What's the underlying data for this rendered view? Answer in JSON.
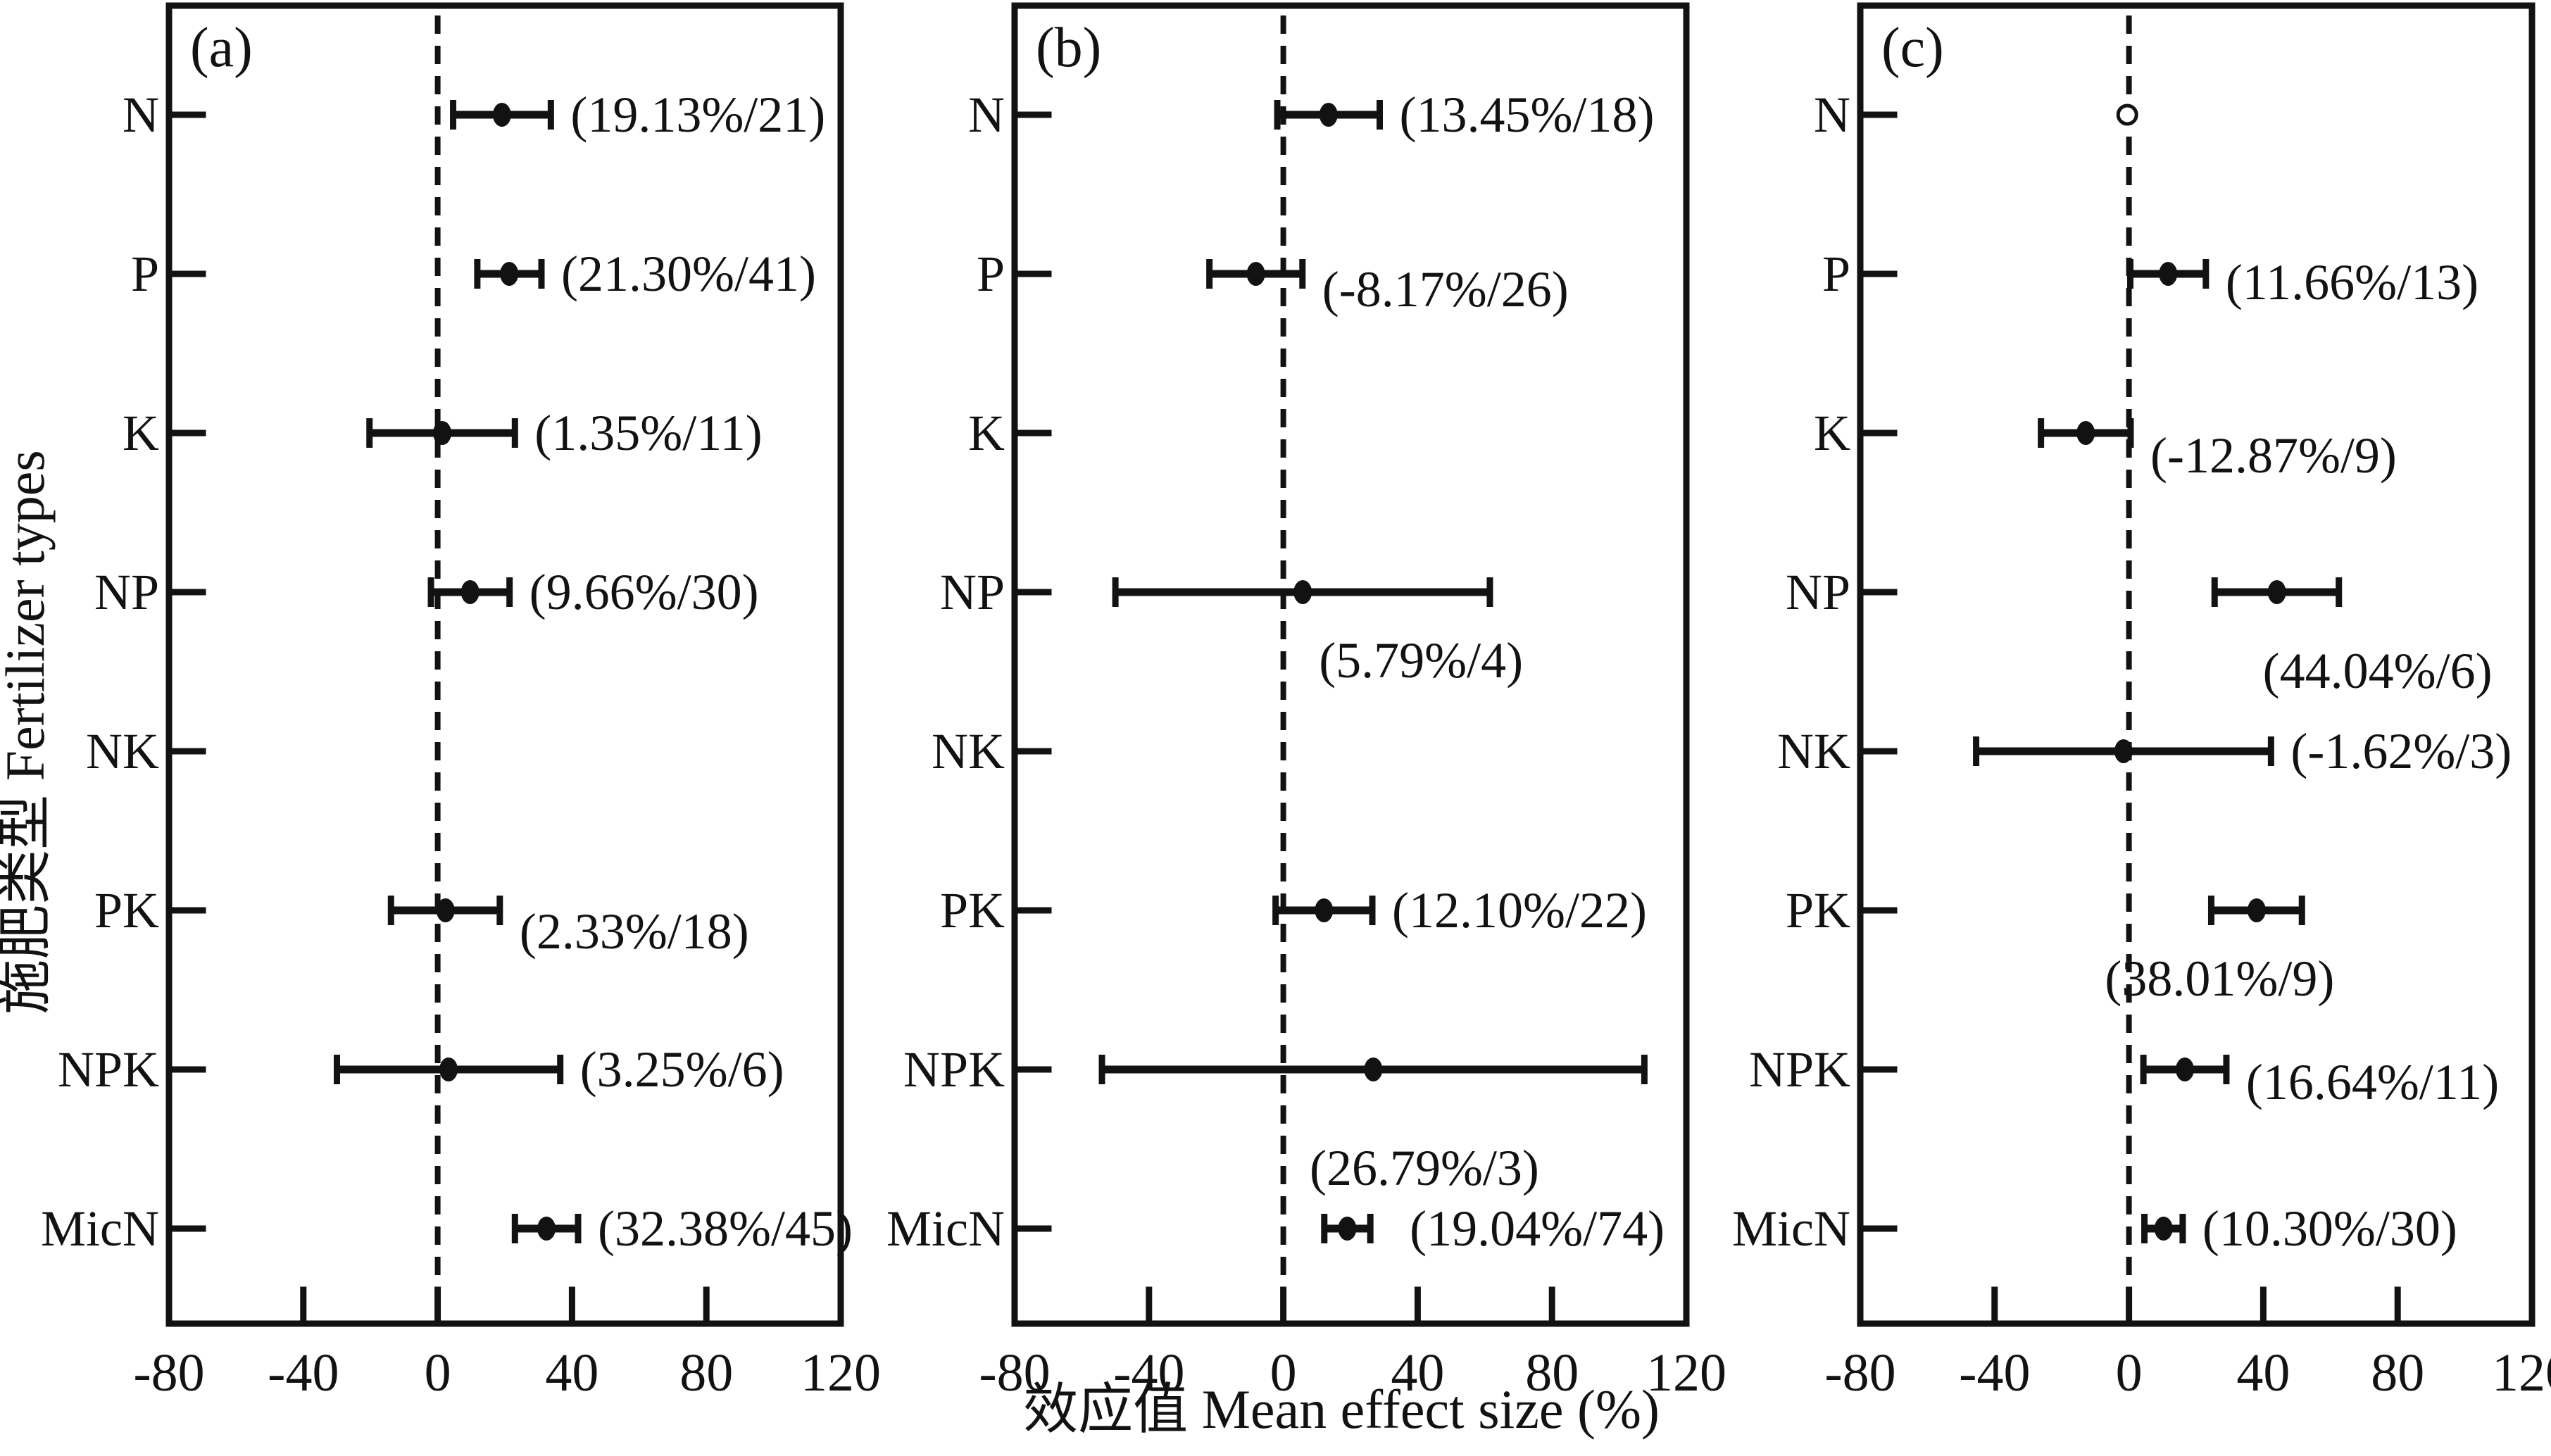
{
  "page": {
    "background_color": "#ffffff",
    "ink_color": "#121212"
  },
  "chart_data": {
    "type": "forest",
    "orientation": "horizontal",
    "xlabel": "效应值 Mean effect size (%)",
    "ylabel": "施肥类型 Fertilizer types",
    "xlim": [
      -80,
      120
    ],
    "x_ticks": [
      -80,
      -40,
      0,
      40,
      80,
      120
    ],
    "zero_line": 0,
    "grid": false,
    "legend": "none",
    "categories": [
      "N",
      "P",
      "K",
      "NP",
      "NK",
      "PK",
      "NPK",
      "MicN"
    ],
    "panels": [
      {
        "letter": "(a)",
        "points": [
          {
            "category": "N",
            "mean": 19.13,
            "n": 21,
            "ci": [
              4.6,
              33.7
            ],
            "label": "(19.13%/21)",
            "label_side": "right"
          },
          {
            "category": "P",
            "mean": 21.3,
            "n": 41,
            "ci": [
              11.8,
              30.9
            ],
            "label": "(21.30%/41)",
            "label_side": "right"
          },
          {
            "category": "K",
            "mean": 1.35,
            "n": 11,
            "ci": [
              -20.3,
              23.0
            ],
            "label": "(1.35%/11)",
            "label_side": "right"
          },
          {
            "category": "NP",
            "mean": 9.66,
            "n": 30,
            "ci": [
              -2.0,
              21.4
            ],
            "label": "(9.66%/30)",
            "label_side": "right"
          },
          {
            "category": "PK",
            "mean": 2.33,
            "n": 18,
            "ci": [
              -13.9,
              18.5
            ],
            "label": "(2.33%/18)",
            "label_side": "right",
            "label_dy": 30
          },
          {
            "category": "NPK",
            "mean": 3.25,
            "n": 6,
            "ci": [
              -30.0,
              36.5
            ],
            "label": "(3.25%/6)",
            "label_side": "right"
          },
          {
            "category": "MicN",
            "mean": 32.38,
            "n": 45,
            "ci": [
              23.0,
              41.8
            ],
            "label": "(32.38%/45)",
            "label_side": "right"
          }
        ]
      },
      {
        "letter": "(b)",
        "points": [
          {
            "category": "N",
            "mean": 13.45,
            "n": 18,
            "ci": [
              -1.8,
              28.7
            ],
            "label": "(13.45%/18)",
            "label_side": "right"
          },
          {
            "category": "P",
            "mean": -8.17,
            "n": 26,
            "ci": [
              -22.0,
              5.7
            ],
            "label": "(-8.17%/26)",
            "label_side": "right",
            "label_dy": 22
          },
          {
            "category": "NP",
            "mean": 5.79,
            "n": 4,
            "ci": [
              -50.0,
              61.5
            ],
            "label": "(5.79%/4)",
            "label_side": "below",
            "label_cx": 41,
            "label_dy": 97
          },
          {
            "category": "PK",
            "mean": 12.1,
            "n": 22,
            "ci": [
              -2.3,
              26.5
            ],
            "label": "(12.10%/22)",
            "label_side": "right"
          },
          {
            "category": "NPK",
            "mean": 26.79,
            "n": 3,
            "ci": [
              -54.0,
              107.5
            ],
            "label": "(26.79%/3)",
            "label_side": "below",
            "label_cx": 42,
            "label_dy": 140
          },
          {
            "category": "MicN",
            "mean": 19.04,
            "n": 74,
            "ci": [
              12.2,
              25.9
            ],
            "label": "(19.04%/74)",
            "label_side": "right",
            "label_dx": 56
          }
        ]
      },
      {
        "letter": "(c)",
        "points": [
          {
            "category": "N",
            "mean": -0.5,
            "marker": "open"
          },
          {
            "category": "P",
            "mean": 11.66,
            "n": 13,
            "ci": [
              0.4,
              22.9
            ],
            "label": "(11.66%/13)",
            "label_side": "right",
            "label_dy": 12
          },
          {
            "category": "K",
            "mean": -12.87,
            "n": 9,
            "ci": [
              -26.2,
              0.5
            ],
            "label": "(-12.87%/9)",
            "label_side": "right",
            "label_dy": 32
          },
          {
            "category": "NP",
            "mean": 44.04,
            "n": 6,
            "ci": [
              25.5,
              62.5
            ],
            "label": "(44.04%/6)",
            "label_side": "below",
            "label_cx": 74,
            "label_dy": 112
          },
          {
            "category": "NK",
            "mean": -1.62,
            "n": 3,
            "ci": [
              -45.5,
              42.3
            ],
            "label": "(-1.62%/3)",
            "label_side": "right"
          },
          {
            "category": "PK",
            "mean": 38.01,
            "n": 9,
            "ci": [
              24.5,
              51.5
            ],
            "label": "(38.01%/9)",
            "label_side": "below",
            "label_cx": 27,
            "label_dy": 97
          },
          {
            "category": "NPK",
            "mean": 16.64,
            "n": 11,
            "ci": [
              4.3,
              29.0
            ],
            "label": "(16.64%/11)",
            "label_side": "right",
            "label_dy": 18
          },
          {
            "category": "MicN",
            "mean": 10.3,
            "n": 30,
            "ci": [
              4.6,
              16.0
            ],
            "label": "(10.30%/30)",
            "label_side": "right"
          }
        ]
      }
    ]
  }
}
